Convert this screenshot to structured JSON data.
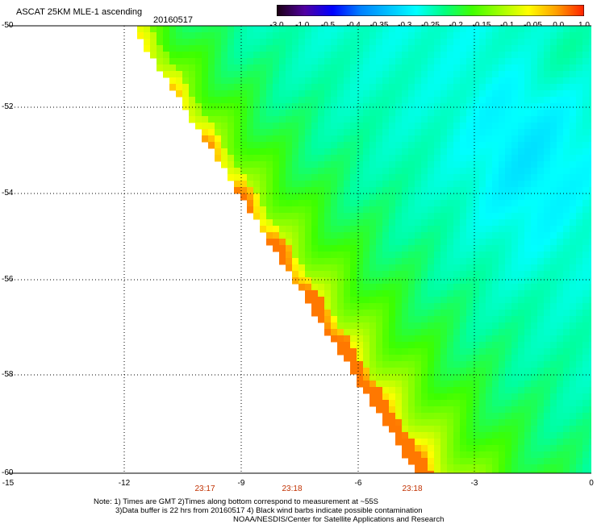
{
  "header": {
    "title": "ASCAT 25KM MLE-1 ascending",
    "date": "20160517"
  },
  "colorbar": {
    "labels": [
      "-3.0",
      "-1.0",
      "-0.5",
      "-0.4",
      "-0.35",
      "-0.3",
      "-0.25",
      "-0.2",
      "-0.15",
      "-0.1",
      "-0.05",
      "0.0",
      "1.0"
    ],
    "colors": [
      "#1a0010",
      "#5000a0",
      "#0000ff",
      "#0080ff",
      "#00c0ff",
      "#00ffff",
      "#00ff80",
      "#40ff00",
      "#a0ff00",
      "#ffff00",
      "#ffa000",
      "#ff2000"
    ]
  },
  "axes": {
    "y_labels": [
      "-50",
      "-52",
      "-54",
      "-56",
      "-58",
      "-60"
    ],
    "x_labels": [
      "-15",
      "-12",
      "-9",
      "-6",
      "-3",
      "0"
    ],
    "time_labels": [
      "23:17",
      "23:18",
      "23:18"
    ]
  },
  "notes": {
    "line1": "Note: 1) Times are GMT 2)Times along bottom correspond to measurement at ~55S",
    "line2": "3)Data buffer is 22 hrs from 20160517 4) Black wind barbs indicate possible contamination",
    "line3": "NOAA/NESDIS/Center for Satellite Applications and Research"
  }
}
